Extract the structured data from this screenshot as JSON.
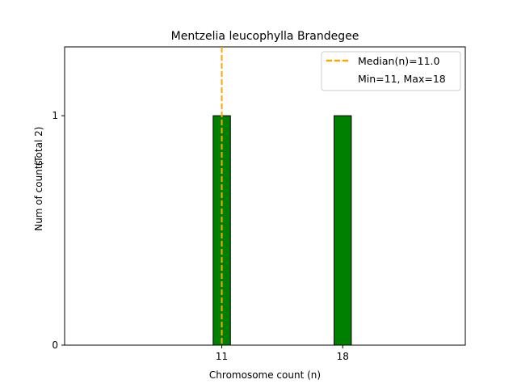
{
  "chart_data": {
    "type": "bar",
    "title": "Mentzelia leucophylla Brandegee",
    "xlabel": "Chromosome count (n)",
    "ylabel": "Num of counts",
    "ylabel_secondary": "(Total 2)",
    "x_min": 1.9,
    "x_max": 25.1,
    "ylim": [
      0,
      1.3
    ],
    "x_ticks": [
      11,
      18
    ],
    "y_ticks": [
      0,
      1
    ],
    "bar_width": 1.0,
    "bars": [
      {
        "x": 11,
        "value": 1
      },
      {
        "x": 18,
        "value": 1
      }
    ],
    "median": 11.0,
    "legend": {
      "placement": "top-right",
      "median_label": "Median(n)=11.0",
      "range_label": "Min=11, Max=18"
    },
    "colors": {
      "bar": "#008000",
      "bar_edge": "#000000",
      "median_line": "#FFA500"
    },
    "grid": false
  }
}
